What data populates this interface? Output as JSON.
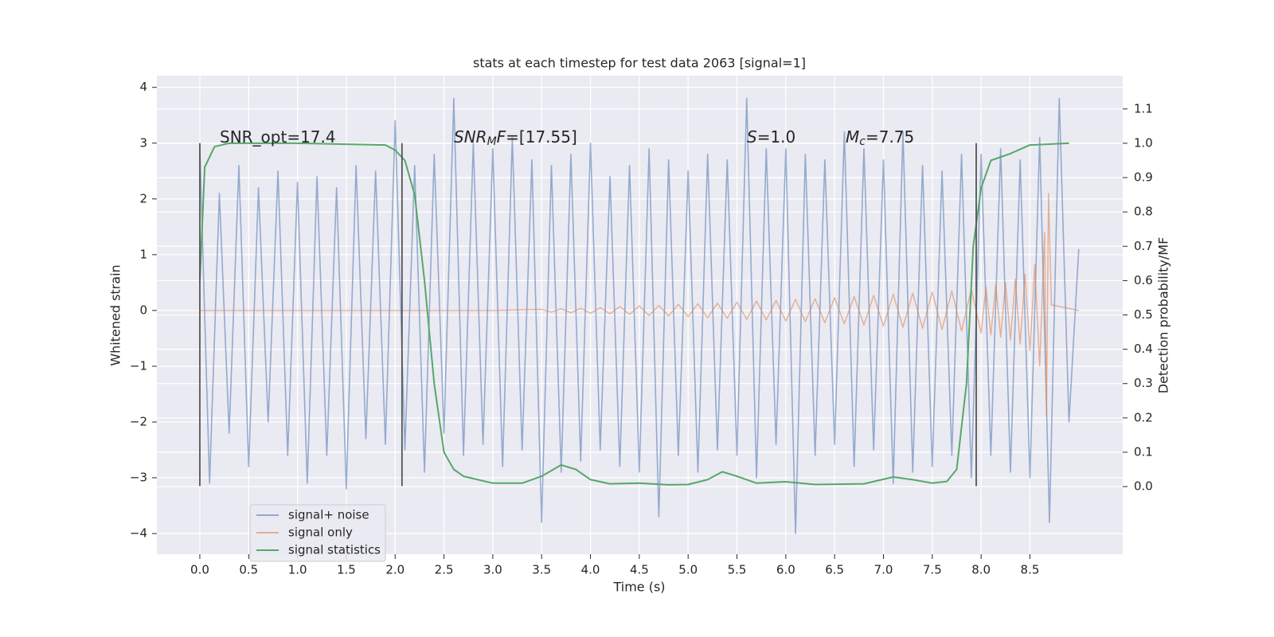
{
  "chart_data": {
    "type": "line",
    "title": "stats at each timestep for test data 2063 [signal=1]",
    "xlabel": "Time (s)",
    "ylabel": "Whitened strain",
    "y2label": "Detection probability/MF",
    "xlim": [
      -0.44,
      9.45
    ],
    "ylim": [
      -4.37,
      4.21
    ],
    "y2lim": [
      -0.197,
      1.197
    ],
    "xticks": [
      {
        "value": 0,
        "label": "0.0"
      },
      0.5,
      {
        "value": 1,
        "label": "1.0"
      },
      1.5,
      {
        "value": 2,
        "label": "2.0"
      },
      2.5,
      {
        "value": 3,
        "label": "3.0"
      },
      3.5,
      {
        "value": 4,
        "label": "4.0"
      },
      4.5,
      {
        "value": 5,
        "label": "5.0"
      },
      5.5,
      {
        "value": 6,
        "label": "6.0"
      },
      6.5,
      {
        "value": 7,
        "label": "7.0"
      },
      7.5,
      {
        "value": 8,
        "label": "8.0"
      },
      8.5
    ],
    "yticks": [
      {
        "value": -4,
        "label": "−4"
      },
      {
        "value": -3,
        "label": "−3"
      },
      {
        "value": -2,
        "label": "−2"
      },
      {
        "value": -1,
        "label": "−1"
      },
      0,
      1,
      2,
      3,
      4
    ],
    "y2ticks": [
      {
        "value": 0,
        "label": "0.0"
      },
      0.1,
      0.2,
      0.3,
      0.4,
      0.5,
      0.6,
      0.7,
      0.8,
      0.9,
      {
        "value": 1,
        "label": "1.0"
      },
      1.1
    ],
    "grid": true,
    "legend": "lower left",
    "series": [
      {
        "name": "signal+ noise",
        "color": "#4c72b0",
        "axis": "y",
        "x": [
          0,
          0.1,
          0.2,
          0.3,
          0.4,
          0.5,
          0.6,
          0.7,
          0.8,
          0.9,
          1,
          1.1,
          1.2,
          1.3,
          1.4,
          1.5,
          1.6,
          1.7,
          1.8,
          1.9,
          2,
          2.1,
          2.2,
          2.3,
          2.4,
          2.5,
          2.6,
          2.7,
          2.8,
          2.9,
          3,
          3.1,
          3.2,
          3.3,
          3.4,
          3.5,
          3.6,
          3.7,
          3.8,
          3.9,
          4,
          4.1,
          4.2,
          4.3,
          4.4,
          4.5,
          4.6,
          4.7,
          4.8,
          4.9,
          5,
          5.1,
          5.2,
          5.3,
          5.4,
          5.5,
          5.6,
          5.7,
          5.8,
          5.9,
          6,
          6.1,
          6.2,
          6.3,
          6.4,
          6.5,
          6.6,
          6.7,
          6.8,
          6.9,
          7,
          7.1,
          7.2,
          7.3,
          7.4,
          7.5,
          7.6,
          7.7,
          7.8,
          7.9,
          8,
          8.1,
          8.2,
          8.3,
          8.4,
          8.5,
          8.6,
          8.7,
          8.8,
          8.9,
          9
        ],
        "values": [
          2.9,
          -3.1,
          2.1,
          -2.2,
          2.6,
          -2.8,
          2.2,
          -2.0,
          2.5,
          -2.6,
          2.3,
          -3.1,
          2.4,
          -2.6,
          2.2,
          -3.2,
          2.6,
          -2.3,
          2.5,
          -2.4,
          3.4,
          -2.5,
          2.6,
          -2.9,
          2.8,
          -2.2,
          3.8,
          -2.6,
          3.0,
          -2.4,
          2.9,
          -2.8,
          3.1,
          -2.5,
          2.7,
          -3.8,
          2.6,
          -2.9,
          2.8,
          -2.7,
          3.0,
          -2.5,
          2.4,
          -2.8,
          2.6,
          -2.9,
          2.9,
          -3.7,
          2.7,
          -2.6,
          2.5,
          -2.9,
          2.8,
          -2.5,
          2.7,
          -2.6,
          3.8,
          -3.0,
          2.9,
          -2.4,
          2.9,
          -4.0,
          2.8,
          -2.6,
          2.7,
          -2.4,
          3.2,
          -2.8,
          2.9,
          -2.5,
          2.7,
          -3.1,
          3.2,
          -2.9,
          2.6,
          -2.8,
          2.5,
          -2.6,
          2.8,
          -3.0,
          2.8,
          -2.6,
          2.9,
          -2.9,
          2.7,
          -3.0,
          3.1,
          -3.8,
          3.8,
          -2.0,
          1.1
        ]
      },
      {
        "name": "signal only",
        "color": "#dd8452",
        "axis": "y",
        "x": [
          0,
          3,
          3.5,
          3.6,
          3.7,
          3.8,
          3.9,
          4,
          4.1,
          4.2,
          4.3,
          4.4,
          4.5,
          4.6,
          4.7,
          4.8,
          4.9,
          5,
          5.1,
          5.2,
          5.3,
          5.4,
          5.5,
          5.6,
          5.7,
          5.8,
          5.9,
          6,
          6.1,
          6.2,
          6.3,
          6.4,
          6.5,
          6.6,
          6.7,
          6.8,
          6.9,
          7,
          7.1,
          7.2,
          7.3,
          7.4,
          7.5,
          7.6,
          7.7,
          7.8,
          7.9,
          8,
          8.05,
          8.1,
          8.15,
          8.2,
          8.25,
          8.3,
          8.35,
          8.4,
          8.45,
          8.5,
          8.55,
          8.6,
          8.65,
          8.67,
          8.69,
          8.72,
          9
        ],
        "values": [
          0,
          0,
          0.02,
          -0.03,
          0.03,
          -0.04,
          0.04,
          -0.05,
          0.05,
          -0.06,
          0.07,
          -0.07,
          0.08,
          -0.09,
          0.09,
          -0.1,
          0.11,
          -0.11,
          0.12,
          -0.13,
          0.13,
          -0.14,
          0.15,
          -0.16,
          0.17,
          -0.17,
          0.18,
          -0.19,
          0.2,
          -0.2,
          0.21,
          -0.22,
          0.23,
          -0.24,
          0.25,
          -0.26,
          0.27,
          -0.28,
          0.29,
          -0.3,
          0.31,
          -0.32,
          0.33,
          -0.34,
          0.35,
          -0.37,
          0.38,
          -0.4,
          0.42,
          -0.44,
          0.46,
          -0.48,
          0.5,
          -0.53,
          0.56,
          -0.6,
          0.65,
          -0.72,
          0.82,
          -1.0,
          1.4,
          -1.9,
          2.1,
          0.1,
          0
        ]
      },
      {
        "name": "signal statistics",
        "color": "#55a868",
        "axis": "y2",
        "x": [
          0,
          0.05,
          0.15,
          0.3,
          1,
          1.9,
          2,
          2.1,
          2.2,
          2.3,
          2.4,
          2.5,
          2.6,
          2.7,
          3,
          3.3,
          3.5,
          3.7,
          3.85,
          4,
          4.2,
          4.5,
          4.8,
          5,
          5.2,
          5.35,
          5.5,
          5.7,
          6,
          6.3,
          6.8,
          7.1,
          7.3,
          7.5,
          7.65,
          7.75,
          7.85,
          7.92,
          8,
          8.1,
          8.3,
          8.5,
          8.9
        ],
        "values": [
          0.6,
          0.93,
          0.99,
          1.0,
          1.0,
          0.995,
          0.98,
          0.95,
          0.85,
          0.6,
          0.3,
          0.1,
          0.05,
          0.03,
          0.01,
          0.01,
          0.03,
          0.063,
          0.05,
          0.02,
          0.008,
          0.01,
          0.005,
          0.006,
          0.02,
          0.043,
          0.03,
          0.01,
          0.014,
          0.006,
          0.008,
          0.028,
          0.02,
          0.01,
          0.015,
          0.05,
          0.3,
          0.7,
          0.87,
          0.95,
          0.97,
          0.995,
          1.0
        ]
      }
    ],
    "vlines": {
      "x": [
        0,
        2.07,
        7.95
      ],
      "ymin": -3.15,
      "ymax": 3.0,
      "color": "#555555"
    },
    "annotations": [
      [
        "SNR_opt=17.4"
      ],
      [
        "SNR",
        "M",
        "F",
        "=[17.55]"
      ],
      [
        "S",
        "=1.0"
      ],
      [
        "M",
        "c",
        "=7.75"
      ]
    ]
  }
}
